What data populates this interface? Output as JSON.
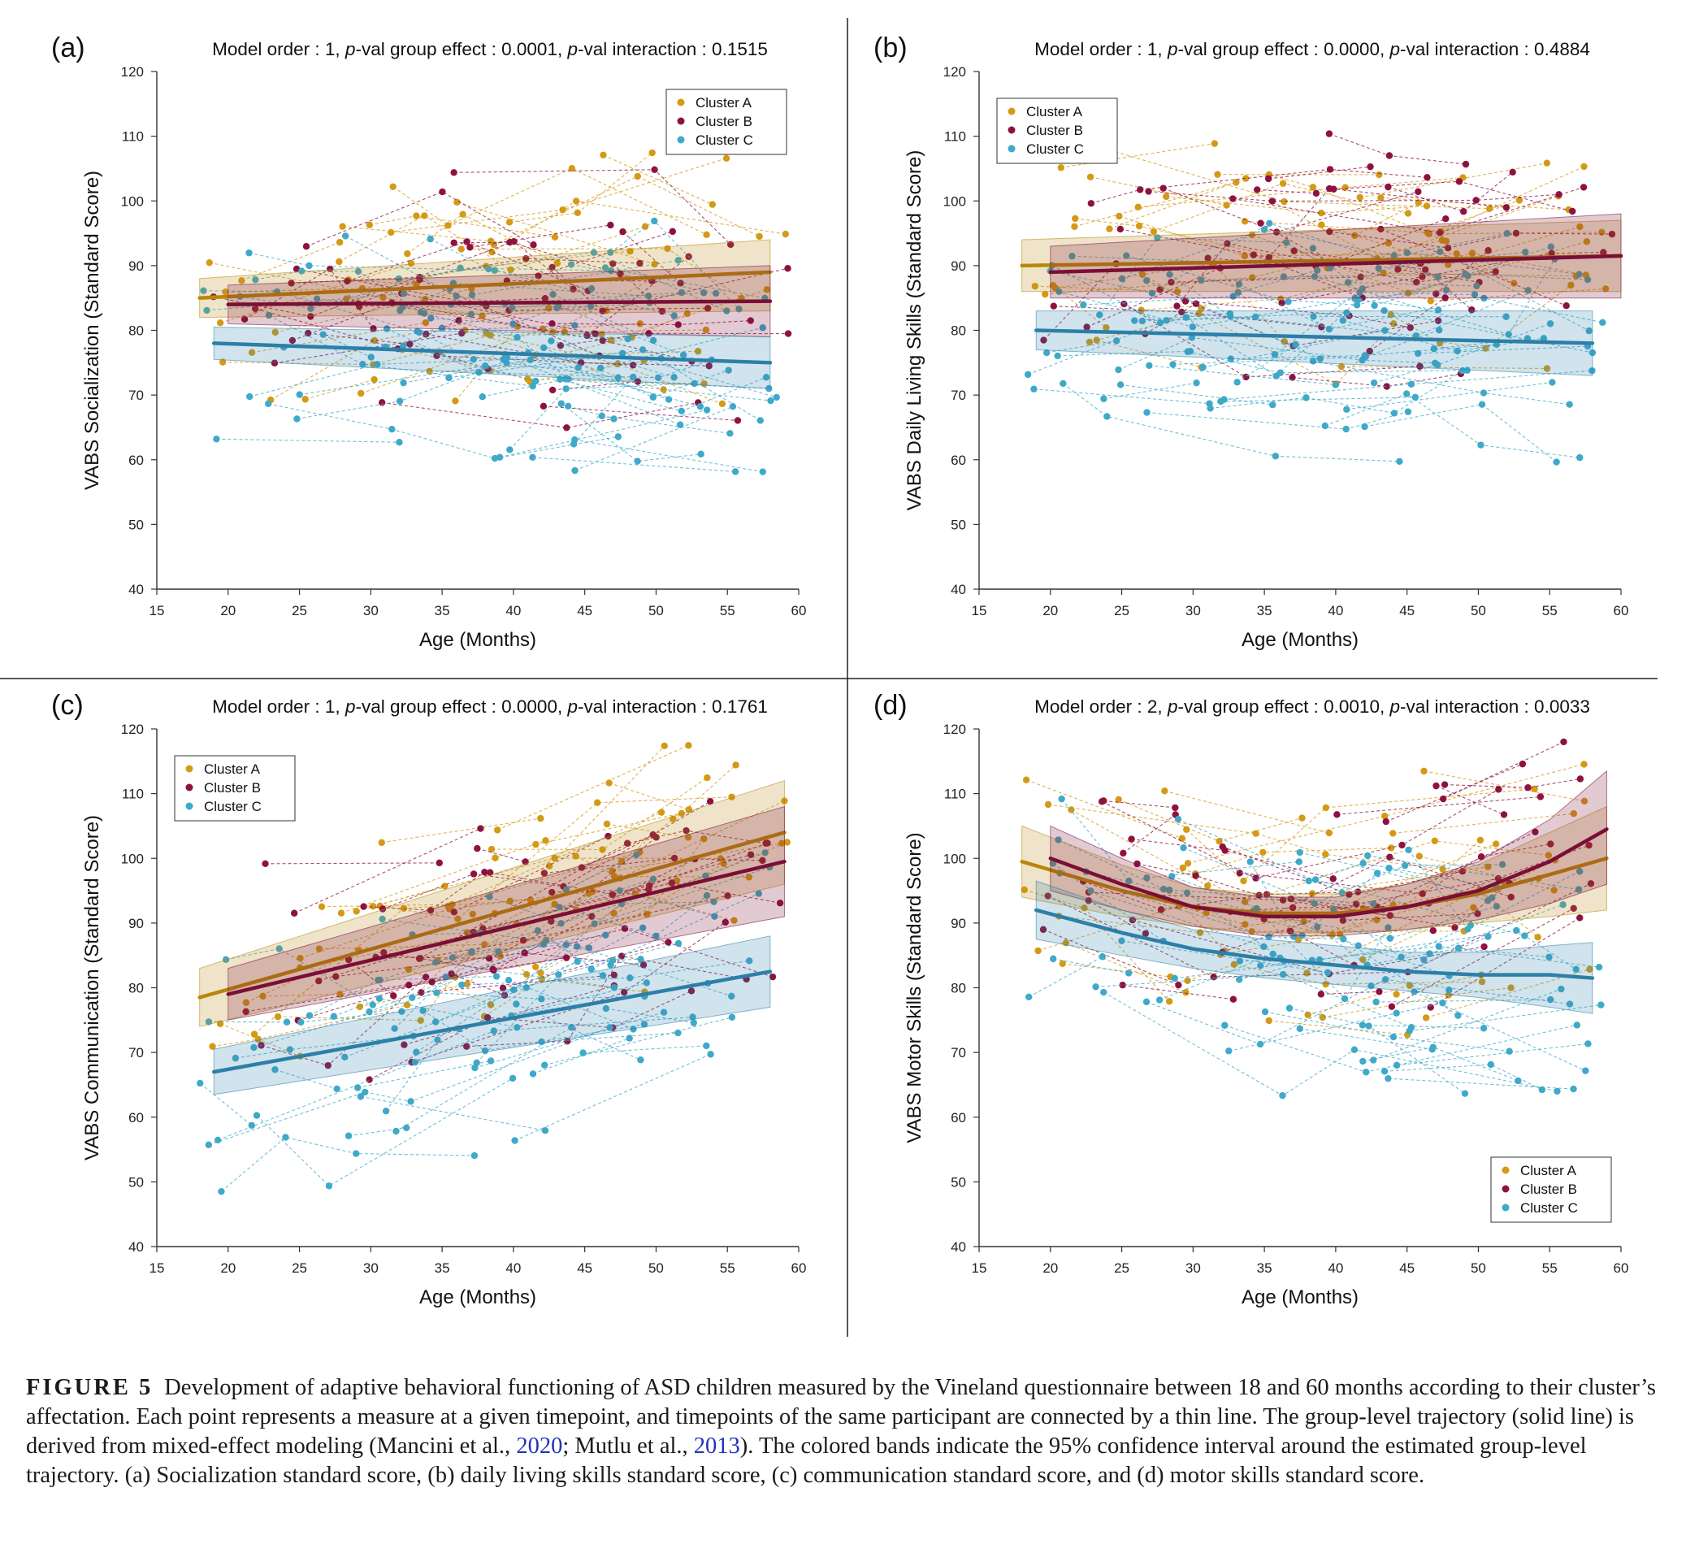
{
  "colors": {
    "cluster_a": "#d49a16",
    "cluster_b": "#8e1240",
    "cluster_c": "#3fa9c9",
    "trend_a": "#b8860b",
    "trend_b": "#7a0e36",
    "trend_c": "#2c7fa8"
  },
  "legend_labels": [
    "Cluster A",
    "Cluster B",
    "Cluster C"
  ],
  "chart_data": [
    {
      "panel": "(a)",
      "type": "scatter",
      "title_prefix": "Model order : 1, ",
      "title_italic": "p",
      "title_mid": "-val group effect : 0.0001, ",
      "title_italic2": "p",
      "title_end": "-val interaction : 0.1515",
      "xlabel": "Age (Months)",
      "ylabel": "VABS Socialization (Standard Score)",
      "xlim": [
        15,
        60
      ],
      "ylim": [
        40,
        120
      ],
      "xticks": [
        15,
        20,
        25,
        30,
        35,
        40,
        45,
        50,
        55,
        60
      ],
      "yticks": [
        40,
        50,
        60,
        70,
        80,
        90,
        100,
        110,
        120
      ],
      "legend_position": "top-right",
      "trends": [
        {
          "name": "Cluster A",
          "x": [
            18,
            58
          ],
          "y": [
            85,
            89
          ],
          "ci_lower": [
            82,
            83
          ],
          "ci_upper": [
            88,
            94
          ]
        },
        {
          "name": "Cluster B",
          "x": [
            20,
            58
          ],
          "y": [
            84,
            84.5
          ],
          "ci_lower": [
            81,
            79
          ],
          "ci_upper": [
            87,
            90
          ]
        },
        {
          "name": "Cluster C",
          "x": [
            19,
            58
          ],
          "y": [
            78,
            75
          ],
          "ci_lower": [
            75.5,
            71
          ],
          "ci_upper": [
            80.5,
            79
          ]
        }
      ]
    },
    {
      "panel": "(b)",
      "type": "scatter",
      "title_prefix": "Model order : 1, ",
      "title_italic": "p",
      "title_mid": "-val group effect : 0.0000, ",
      "title_italic2": "p",
      "title_end": "-val interaction : 0.4884",
      "xlabel": "Age (Months)",
      "ylabel": "VABS Daily Living Skills (Standard Score)",
      "xlim": [
        15,
        60
      ],
      "ylim": [
        40,
        120
      ],
      "xticks": [
        15,
        20,
        25,
        30,
        35,
        40,
        45,
        50,
        55,
        60
      ],
      "yticks": [
        40,
        50,
        60,
        70,
        80,
        90,
        100,
        110,
        120
      ],
      "legend_position": "top-left",
      "trends": [
        {
          "name": "Cluster A",
          "x": [
            18,
            60
          ],
          "y": [
            90,
            91.5
          ],
          "ci_lower": [
            86,
            86
          ],
          "ci_upper": [
            94,
            97
          ]
        },
        {
          "name": "Cluster B",
          "x": [
            20,
            60
          ],
          "y": [
            89,
            91.5
          ],
          "ci_lower": [
            85,
            85
          ],
          "ci_upper": [
            93,
            98
          ]
        },
        {
          "name": "Cluster C",
          "x": [
            19,
            58
          ],
          "y": [
            80,
            78
          ],
          "ci_lower": [
            77,
            73
          ],
          "ci_upper": [
            83,
            83
          ]
        }
      ]
    },
    {
      "panel": "(c)",
      "type": "scatter",
      "title_prefix": "Model order : 1, ",
      "title_italic": "p",
      "title_mid": "-val group effect : 0.0000, ",
      "title_italic2": "p",
      "title_end": "-val interaction : 0.1761",
      "xlabel": "Age (Months)",
      "ylabel": "VABS Communication (Standard Score)",
      "xlim": [
        15,
        60
      ],
      "ylim": [
        40,
        120
      ],
      "xticks": [
        15,
        20,
        25,
        30,
        35,
        40,
        45,
        50,
        55,
        60
      ],
      "yticks": [
        40,
        50,
        60,
        70,
        80,
        90,
        100,
        110,
        120
      ],
      "legend_position": "top-left",
      "trends": [
        {
          "name": "Cluster A",
          "x": [
            18,
            59
          ],
          "y": [
            78.5,
            104
          ],
          "ci_lower": [
            74,
            96
          ],
          "ci_upper": [
            83,
            112
          ]
        },
        {
          "name": "Cluster B",
          "x": [
            20,
            59
          ],
          "y": [
            79,
            99.5
          ],
          "ci_lower": [
            75,
            91
          ],
          "ci_upper": [
            83,
            108
          ]
        },
        {
          "name": "Cluster C",
          "x": [
            19,
            58
          ],
          "y": [
            67,
            82.5
          ],
          "ci_lower": [
            63.5,
            77
          ],
          "ci_upper": [
            70.5,
            88
          ]
        }
      ]
    },
    {
      "panel": "(d)",
      "type": "scatter",
      "title_prefix": "Model order : 2, ",
      "title_italic": "p",
      "title_mid": "-val group effect : 0.0010, ",
      "title_italic2": "p",
      "title_end": "-val interaction : 0.0033",
      "xlabel": "Age (Months)",
      "ylabel": "VABS Motor Skills (Standard Score)",
      "xlim": [
        15,
        60
      ],
      "ylim": [
        40,
        120
      ],
      "xticks": [
        15,
        20,
        25,
        30,
        35,
        40,
        45,
        50,
        55,
        60
      ],
      "yticks": [
        40,
        50,
        60,
        70,
        80,
        90,
        100,
        110,
        120
      ],
      "legend_position": "bottom-right",
      "trends": [
        {
          "name": "Cluster A",
          "x": [
            18,
            25,
            30,
            35,
            40,
            45,
            50,
            55,
            59
          ],
          "y": [
            99.5,
            95,
            92.5,
            91.5,
            91.5,
            92.5,
            94.5,
            97.5,
            100
          ],
          "ci_lower": [
            94,
            91,
            89.5,
            88.5,
            88.5,
            89,
            90,
            91,
            92
          ],
          "ci_upper": [
            105,
            99,
            95.5,
            94.5,
            94.5,
            96,
            99,
            104,
            108
          ]
        },
        {
          "name": "Cluster B",
          "x": [
            20,
            25,
            30,
            35,
            40,
            45,
            50,
            55,
            59
          ],
          "y": [
            100,
            96,
            92.5,
            91,
            91,
            92.5,
            95,
            99.5,
            104.5
          ],
          "ci_lower": [
            95,
            92,
            89.5,
            88,
            88,
            89,
            90.5,
            93,
            96
          ],
          "ci_upper": [
            105,
            100,
            95.5,
            94,
            94,
            96,
            99.5,
            106,
            113.5
          ]
        },
        {
          "name": "Cluster C",
          "x": [
            19,
            25,
            30,
            35,
            40,
            45,
            50,
            55,
            58
          ],
          "y": [
            92,
            88.5,
            86,
            84.5,
            83.5,
            82.5,
            82,
            82,
            81.5
          ],
          "ci_lower": [
            87.5,
            85,
            83,
            81.5,
            80.5,
            79.5,
            78.5,
            77,
            76
          ],
          "ci_upper": [
            96.5,
            92,
            89,
            87.5,
            86.5,
            85.5,
            85.5,
            86.5,
            87
          ]
        }
      ]
    }
  ],
  "caption": {
    "label": "FIGURE 5",
    "part1": "Development of adaptive behavioral functioning of ASD children measured by the Vineland questionnaire between 18 and 60 months according to their cluster’s affectation. Each point represents a measure at a given timepoint, and timepoints of the same participant are connected by a thin line. The group-level trajectory (solid line) is derived from mixed-effect modeling (Mancini et al., ",
    "ref1": "2020",
    "part2": "; Mutlu et al., ",
    "ref2": "2013",
    "part3": "). The colored bands indicate the 95% confidence interval around the estimated group-level trajectory. (a) Socialization standard score, (b) daily living skills standard score, (c) communication standard score, and (d) motor skills standard score."
  }
}
